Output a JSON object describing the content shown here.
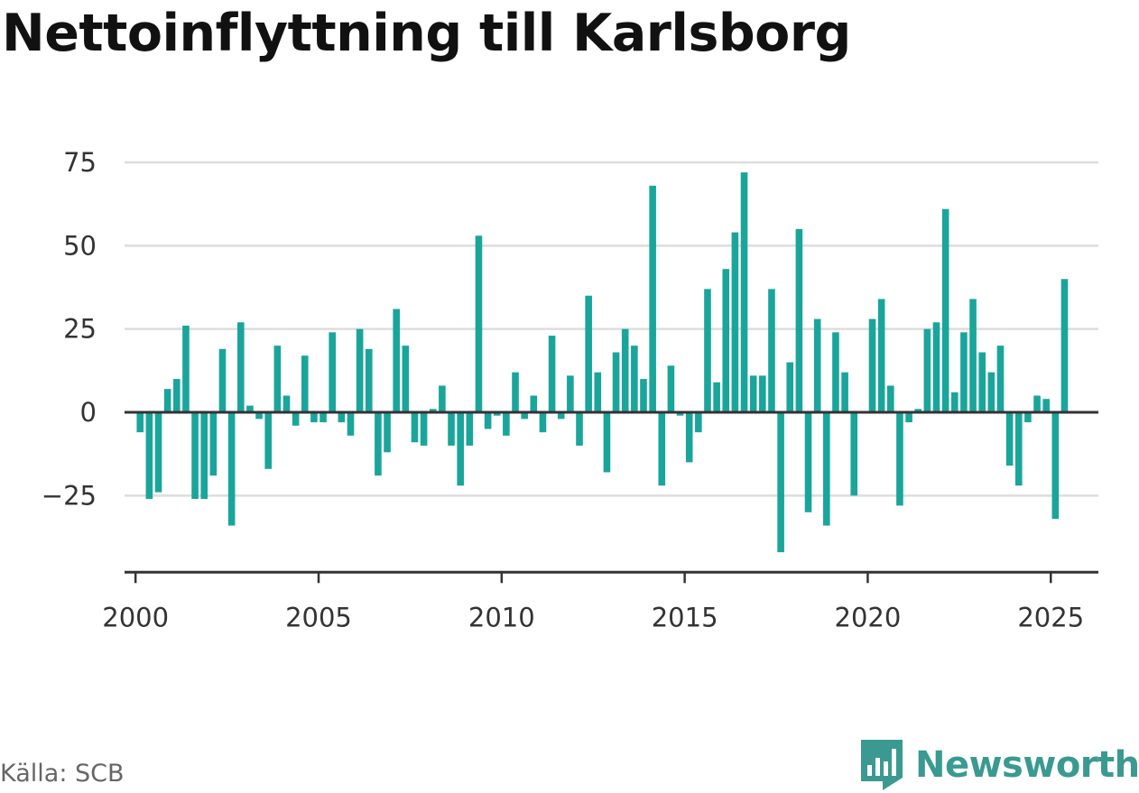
{
  "title": "Nettoinflyttning till Karlsborg",
  "source": "Källa: SCB",
  "brand": {
    "name": "Newsworthy",
    "icon": "newsworthy-logo-icon",
    "color": "#3a9a91"
  },
  "colors": {
    "bar": "#1aa59b",
    "grid": "#dddddd",
    "axis": "#333333"
  },
  "chart_data": {
    "type": "bar",
    "title": "Nettoinflyttning till Karlsborg",
    "xlabel": "",
    "ylabel": "",
    "ylim": [
      -48,
      75
    ],
    "yticks": [
      75,
      50,
      25,
      0,
      -25
    ],
    "ytick_labels": [
      "75",
      "50",
      "25",
      "0",
      "−25"
    ],
    "xlim": [
      1999.7,
      2026.3
    ],
    "xticks": [
      2000,
      2005,
      2010,
      2015,
      2020,
      2025
    ],
    "xtick_labels": [
      "2000",
      "2005",
      "2010",
      "2015",
      "2020",
      "2025"
    ],
    "grid": true,
    "legend": "none",
    "frequency": "quarterly",
    "start": "2000 Q1",
    "values": [
      -6,
      -26,
      -24,
      7,
      10,
      26,
      -26,
      -26,
      -19,
      19,
      -34,
      27,
      2,
      -2,
      -17,
      20,
      5,
      -4,
      17,
      -3,
      -3,
      24,
      -3,
      -7,
      25,
      19,
      -19,
      -12,
      31,
      20,
      -9,
      -10,
      1,
      8,
      -10,
      -22,
      -10,
      53,
      -5,
      -1,
      -7,
      12,
      -2,
      5,
      -6,
      23,
      -2,
      11,
      -10,
      35,
      12,
      -18,
      18,
      25,
      20,
      10,
      68,
      -22,
      14,
      -1,
      -15,
      -6,
      37,
      9,
      43,
      54,
      72,
      11,
      11,
      37,
      -42,
      15,
      55,
      -30,
      28,
      -34,
      24,
      12,
      -25,
      0,
      28,
      34,
      8,
      -28,
      -3,
      1,
      25,
      27,
      61,
      6,
      24,
      34,
      18,
      12,
      20,
      -16,
      -22,
      -3,
      5,
      4,
      -32,
      40
    ]
  }
}
